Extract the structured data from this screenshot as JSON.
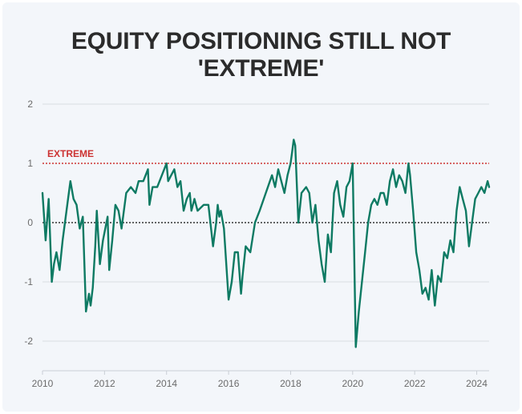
{
  "title_line1": "EQUITY POSITIONING STILL NOT",
  "title_line2": "'EXTREME'",
  "colors": {
    "line": "#0e7a63",
    "threshold": "#cc3333",
    "grid": "#d8dde3",
    "zero": "#333333",
    "background": "#f3f6fa"
  },
  "chart_data": {
    "type": "line",
    "title": "EQUITY POSITIONING STILL NOT 'EXTREME'",
    "xlabel": "",
    "ylabel": "",
    "xlim": [
      2010,
      2024.4
    ],
    "ylim": [
      -2.5,
      2
    ],
    "y_ticks": [
      2,
      1,
      0,
      -1,
      -2
    ],
    "y_tick_labels": [
      "2",
      "1",
      "0",
      "-1",
      "-2"
    ],
    "x_ticks": [
      2010,
      2012,
      2014,
      2016,
      2018,
      2020,
      2022,
      2024
    ],
    "x_tick_labels": [
      "2010",
      "2012",
      "2014",
      "2016",
      "2018",
      "2020",
      "2022",
      "2024"
    ],
    "grid": "horizontal",
    "threshold": {
      "value": 1,
      "label": "EXTREME",
      "style": "dotted"
    },
    "zero_line": {
      "value": 0,
      "style": "dotted"
    },
    "series": [
      {
        "x": [
          2010.0,
          2010.1,
          2010.2,
          2010.3,
          2010.37,
          2010.45,
          2010.55,
          2010.65,
          2010.8,
          2010.9,
          2011.0,
          2011.1,
          2011.2,
          2011.3,
          2011.4,
          2011.5,
          2011.55,
          2011.62,
          2011.7,
          2011.75,
          2011.85,
          2011.95,
          2012.1,
          2012.15,
          2012.25,
          2012.35,
          2012.45,
          2012.55,
          2012.7,
          2012.85,
          2013.0,
          2013.1,
          2013.25,
          2013.4,
          2013.45,
          2013.55,
          2013.7,
          2013.85,
          2014.0,
          2014.05,
          2014.15,
          2014.25,
          2014.35,
          2014.45,
          2014.55,
          2014.65,
          2014.75,
          2014.8,
          2014.9,
          2015.0,
          2015.2,
          2015.35,
          2015.5,
          2015.6,
          2015.65,
          2015.7,
          2015.75,
          2015.85,
          2016.0,
          2016.1,
          2016.2,
          2016.3,
          2016.4,
          2016.45,
          2016.55,
          2016.7,
          2016.85,
          2017.0,
          2017.2,
          2017.4,
          2017.5,
          2017.6,
          2017.7,
          2017.8,
          2017.9,
          2018.0,
          2018.05,
          2018.1,
          2018.15,
          2018.25,
          2018.35,
          2018.5,
          2018.6,
          2018.7,
          2018.8,
          2018.9,
          2018.95,
          2019.0,
          2019.1,
          2019.2,
          2019.3,
          2019.4,
          2019.5,
          2019.6,
          2019.7,
          2019.8,
          2019.9,
          2020.0,
          2020.05,
          2020.1,
          2020.15,
          2020.2,
          2020.3,
          2020.4,
          2020.5,
          2020.6,
          2020.7,
          2020.8,
          2020.9,
          2021.0,
          2021.1,
          2021.2,
          2021.3,
          2021.4,
          2021.5,
          2021.6,
          2021.7,
          2021.8,
          2021.85,
          2021.95,
          2022.05,
          2022.15,
          2022.25,
          2022.35,
          2022.45,
          2022.55,
          2022.65,
          2022.75,
          2022.85,
          2022.95,
          2023.05,
          2023.15,
          2023.25,
          2023.35,
          2023.45,
          2023.55,
          2023.65,
          2023.75,
          2023.85,
          2023.95,
          2024.05,
          2024.15,
          2024.25,
          2024.35,
          2024.4
        ],
        "values": [
          0.5,
          -0.3,
          0.4,
          -1.0,
          -0.7,
          -0.5,
          -0.8,
          -0.3,
          0.3,
          0.7,
          0.4,
          0.3,
          -0.1,
          0.1,
          -1.5,
          -1.2,
          -1.4,
          -1.1,
          -0.4,
          0.2,
          -0.7,
          -0.3,
          0.1,
          -0.8,
          -0.3,
          0.3,
          0.2,
          -0.1,
          0.5,
          0.6,
          0.5,
          0.7,
          0.7,
          0.9,
          0.3,
          0.6,
          0.6,
          0.8,
          1.0,
          0.7,
          0.8,
          0.9,
          0.6,
          0.7,
          0.2,
          0.4,
          0.5,
          0.2,
          0.4,
          0.2,
          0.3,
          0.3,
          -0.4,
          0.0,
          0.3,
          0.1,
          0.2,
          -0.1,
          -1.3,
          -1.0,
          -0.5,
          -0.5,
          -1.2,
          -0.9,
          -0.4,
          -0.5,
          0.0,
          0.2,
          0.5,
          0.8,
          0.6,
          0.9,
          0.7,
          0.5,
          0.8,
          1.0,
          1.2,
          1.4,
          1.3,
          0.0,
          0.5,
          0.6,
          0.5,
          0.0,
          0.3,
          -0.3,
          -0.5,
          -0.7,
          -1.0,
          -0.2,
          -0.5,
          0.5,
          0.7,
          0.3,
          0.1,
          0.6,
          0.7,
          1.0,
          -0.5,
          -2.1,
          -1.8,
          -1.5,
          -1.0,
          -0.5,
          0.0,
          0.3,
          0.4,
          0.3,
          0.5,
          0.5,
          0.3,
          0.7,
          0.9,
          0.6,
          0.8,
          0.7,
          0.5,
          1.0,
          0.8,
          0.2,
          -0.5,
          -0.8,
          -1.2,
          -1.1,
          -1.3,
          -0.8,
          -1.4,
          -0.9,
          -1.0,
          -0.5,
          -0.6,
          -0.3,
          -0.5,
          0.2,
          0.6,
          0.4,
          0.2,
          -0.4,
          0.0,
          0.4,
          0.5,
          0.6,
          0.5,
          0.7,
          0.6
        ]
      }
    ]
  }
}
